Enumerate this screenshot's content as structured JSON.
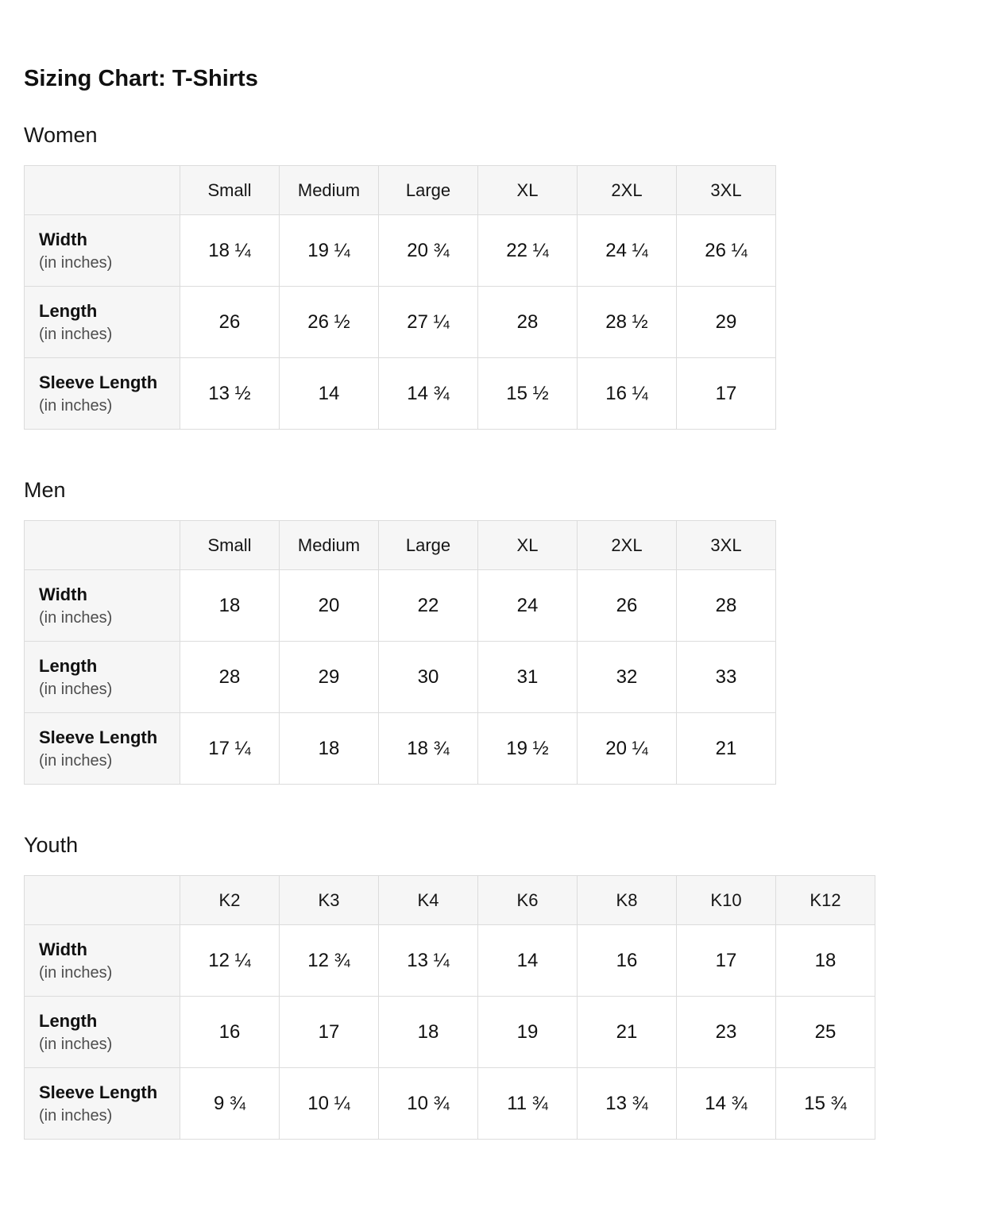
{
  "page": {
    "title": "Sizing Chart: T-Shirts"
  },
  "colors": {
    "background": "#ffffff",
    "header_cell_bg": "#f6f6f6",
    "border": "#dcdcdc",
    "text": "#111111",
    "subtext": "#4d4d4d"
  },
  "tables": [
    {
      "section": "Women",
      "columns": [
        "Small",
        "Medium",
        "Large",
        "XL",
        "2XL",
        "3XL"
      ],
      "rows": [
        {
          "label": "Width",
          "sublabel": "(in inches)",
          "values": [
            "18 ¼",
            "19 ¼",
            "20 ¾",
            "22 ¼",
            "24 ¼",
            "26 ¼"
          ]
        },
        {
          "label": "Length",
          "sublabel": "(in inches)",
          "values": [
            "26",
            "26 ½",
            "27 ¼",
            "28",
            "28 ½",
            "29"
          ]
        },
        {
          "label": "Sleeve Length",
          "sublabel": "(in inches)",
          "values": [
            "13 ½",
            "14",
            "14 ¾",
            "15 ½",
            "16 ¼",
            "17"
          ]
        }
      ]
    },
    {
      "section": "Men",
      "columns": [
        "Small",
        "Medium",
        "Large",
        "XL",
        "2XL",
        "3XL"
      ],
      "rows": [
        {
          "label": "Width",
          "sublabel": "(in inches)",
          "values": [
            "18",
            "20",
            "22",
            "24",
            "26",
            "28"
          ]
        },
        {
          "label": "Length",
          "sublabel": "(in inches)",
          "values": [
            "28",
            "29",
            "30",
            "31",
            "32",
            "33"
          ]
        },
        {
          "label": "Sleeve Length",
          "sublabel": "(in inches)",
          "values": [
            "17 ¼",
            "18",
            "18 ¾",
            "19 ½",
            "20 ¼",
            "21"
          ]
        }
      ]
    },
    {
      "section": "Youth",
      "columns": [
        "K2",
        "K3",
        "K4",
        "K6",
        "K8",
        "K10",
        "K12"
      ],
      "rows": [
        {
          "label": "Width",
          "sublabel": "(in inches)",
          "values": [
            "12 ¼",
            "12 ¾",
            "13 ¼",
            "14",
            "16",
            "17",
            "18"
          ]
        },
        {
          "label": "Length",
          "sublabel": "(in inches)",
          "values": [
            "16",
            "17",
            "18",
            "19",
            "21",
            "23",
            "25"
          ]
        },
        {
          "label": "Sleeve Length",
          "sublabel": "(in inches)",
          "values": [
            "9 ¾",
            "10 ¼",
            "10 ¾",
            "11 ¾",
            "13 ¾",
            "14 ¾",
            "15 ¾"
          ]
        }
      ]
    }
  ]
}
